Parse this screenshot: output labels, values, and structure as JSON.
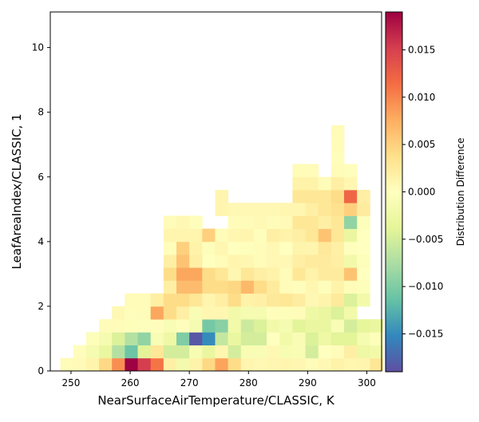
{
  "chart_data": {
    "type": "heatmap",
    "title": "",
    "xlabel": "NearSurfaceAirTemperature/CLASSIC,  K",
    "ylabel": "LeafAreaIndex/CLASSIC,  1",
    "xlim": [
      246.5,
      302.5
    ],
    "ylim": [
      0,
      11.1
    ],
    "xticks": [
      250,
      260,
      270,
      280,
      290,
      300
    ],
    "yticks": [
      0,
      2,
      4,
      6,
      8,
      10
    ],
    "grid": false,
    "colormap": "Spectral_r",
    "colorbar": {
      "label": "Distribution Difference",
      "range": [
        -0.019,
        0.019
      ],
      "ticks": [
        -0.015,
        -0.01,
        -0.005,
        0.0,
        0.005,
        0.01,
        0.015
      ],
      "tick_labels": [
        "−0.015",
        "−0.010",
        "−0.005",
        "0.000",
        "0.005",
        "0.010",
        "0.015"
      ]
    },
    "bins": {
      "x_start": 248.2,
      "x_width": 2.18,
      "y_start": 0,
      "y_height": 0.4
    },
    "rows": [
      {
        "y_index": 0,
        "start": 0,
        "values": [
          0.0005,
          0.0006,
          0.0014,
          0.0044,
          0.0095,
          0.019,
          0.0152,
          0.011,
          0.0018,
          -0.0018,
          0.0015,
          0.0043,
          0.0082,
          0.004,
          0.0012,
          0.0008,
          0.001,
          0.0012,
          0.001,
          0.0004,
          0.0008,
          0.0016,
          0.0011,
          0.0012,
          0.003
        ]
      },
      {
        "y_index": 1,
        "start": 1,
        "values": [
          0.0002,
          -0.0015,
          -0.003,
          -0.007,
          -0.011,
          -0.004,
          0.003,
          -0.005,
          -0.005,
          -0.0012,
          -0.003,
          0.0011,
          -0.005,
          -0.001,
          -0.001,
          0.0009,
          -0.0012,
          -0.001,
          -0.005,
          0.0,
          0.0004,
          0.002,
          -0.0025,
          -0.002
        ]
      },
      {
        "y_index": 2,
        "start": 2,
        "values": [
          -0.0005,
          -0.0015,
          -0.0045,
          -0.007,
          -0.009,
          -0.001,
          -0.0025,
          -0.01,
          -0.0185,
          -0.015,
          -0.006,
          -0.003,
          -0.005,
          -0.005,
          0.0,
          -0.002,
          -0.001,
          -0.0045,
          -0.0025,
          -0.004,
          -0.004,
          -0.0015,
          -0.0005
        ]
      },
      {
        "y_index": 3,
        "start": 3,
        "values": [
          0.0004,
          0.0004,
          -0.0005,
          -0.0003,
          0.0003,
          -0.001,
          0.0002,
          -0.0015,
          -0.0105,
          -0.0095,
          -0.002,
          -0.0055,
          -0.0045,
          -0.002,
          -0.0015,
          -0.004,
          -0.003,
          -0.003,
          -0.001,
          -0.005,
          -0.0035,
          -0.003
        ]
      },
      {
        "y_index": 4,
        "start": 4,
        "values": [
          0.0008,
          0.0003,
          0.0005,
          0.008,
          0.004,
          0.002,
          -0.001,
          0.001,
          0.001,
          -0.002,
          -0.0015,
          -0.0015,
          0.0002,
          -0.0005,
          0.0005,
          -0.0025,
          -0.003,
          -0.0045,
          -0.002
        ]
      },
      {
        "y_index": 5,
        "start": 5,
        "values": [
          0.0005,
          0.0005,
          0.002,
          0.004,
          0.004,
          0.003,
          0.0012,
          0.002,
          0.004,
          0.0015,
          0.0018,
          0.0028,
          0.003,
          0.0022,
          0.0008,
          0.0014,
          0.0026,
          -0.0045,
          -0.002
        ]
      },
      {
        "y_index": 6,
        "start": 8,
        "values": [
          0.002,
          0.0065,
          0.0065,
          0.004,
          0.004,
          0.0045,
          0.0068,
          0.004,
          0.0025,
          0.0005,
          0.0002,
          0.001,
          0.0003,
          0.0015,
          0.0004,
          -0.0005
        ]
      },
      {
        "y_index": 7,
        "start": 8,
        "values": [
          0.004,
          0.008,
          0.008,
          0.004,
          0.003,
          0.001,
          0.003,
          0.002,
          0.0015,
          0.0005,
          0.003,
          0.0015,
          0.0025,
          0.0025,
          0.006,
          0.0
        ]
      },
      {
        "y_index": 8,
        "start": 8,
        "values": [
          0.002,
          0.006,
          0.002,
          0.0,
          0.0005,
          0.0012,
          0.001,
          0.0005,
          0.0008,
          0.0008,
          0.002,
          0.0025,
          0.0025,
          0.002,
          -0.002,
          -0.0005
        ]
      },
      {
        "y_index": 9,
        "start": 8,
        "values": [
          0.0003,
          0.005,
          0.0015,
          -0.0005,
          0.001,
          0.0,
          -0.0003,
          0.0005,
          0.0008,
          0.0,
          0.0014,
          0.0012,
          0.0028,
          0.0018,
          -0.0002,
          0.0
        ]
      },
      {
        "y_index": 10,
        "start": 8,
        "values": [
          0.0012,
          0.0012,
          0.0012,
          0.005,
          0.0005,
          0.001,
          0.0012,
          0.0003,
          0.002,
          0.0015,
          0.002,
          0.003,
          0.006,
          0.003,
          -0.003,
          0.0
        ]
      },
      {
        "y_index": 11,
        "start": 8,
        "values": [
          0.0005,
          0.0008,
          0.0002,
          null,
          null,
          0.0004,
          0.0004,
          0.0007,
          0.0004,
          0.0006,
          0.003,
          0.003,
          0.002,
          0.003,
          -0.009,
          -0.0005
        ]
      },
      {
        "y_index": 12,
        "start": 12,
        "values": [
          0.0012,
          0.0008,
          0.0008,
          0.0008,
          0.0008,
          0.001,
          0.001,
          0.002,
          0.003,
          0.0035,
          0.005,
          0.0025
        ]
      },
      {
        "y_index": 13,
        "start": 12,
        "values": [
          0.0012
        ]
      },
      {
        "y_index": 13,
        "start": 18,
        "values": [
          0.003,
          0.003,
          0.003,
          0.004,
          0.012,
          0.002
        ]
      },
      {
        "y_index": 14,
        "start": 18,
        "values": [
          0.0015,
          0.0015,
          0.0005,
          0.002,
          0.001
        ]
      },
      {
        "y_index": 15,
        "start": 18,
        "values": [
          0.0005,
          0.0005
        ]
      },
      {
        "y_index": 15,
        "start": 21,
        "values": [
          0.0005,
          0.0003
        ]
      },
      {
        "y_index": 16,
        "start": 21,
        "values": [
          0.0003
        ]
      },
      {
        "y_index": 17,
        "start": 21,
        "values": [
          0.0004
        ]
      },
      {
        "y_index": 18,
        "start": 21,
        "values": [
          0.0005
        ]
      }
    ]
  }
}
